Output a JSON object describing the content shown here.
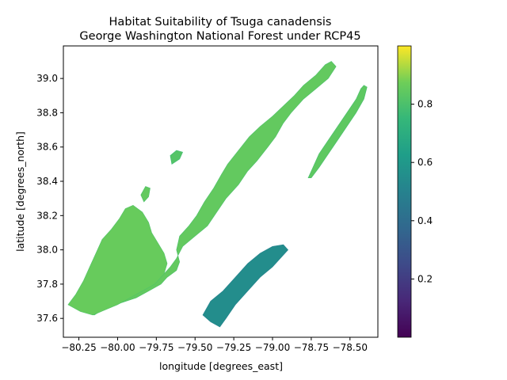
{
  "chart_data": {
    "type": "heatmap",
    "title_line1": "Habitat Suitability of Tsuga canadensis",
    "title_line2": "George Washington National Forest under RCP45",
    "xlabel": "longitude [degrees_east]",
    "ylabel": "latitude [degrees_north]",
    "xlim": [
      -80.35,
      -78.32
    ],
    "ylim": [
      37.49,
      39.19
    ],
    "x_ticks": [
      -80.25,
      -80.0,
      -79.75,
      -79.5,
      -79.25,
      -79.0,
      -78.75,
      -78.5
    ],
    "x_tick_labels": [
      "−80.25",
      "−80.00",
      "−79.75",
      "−79.50",
      "−79.25",
      "−79.00",
      "−78.75",
      "−78.50"
    ],
    "y_ticks": [
      37.6,
      37.8,
      38.0,
      38.2,
      38.4,
      38.6,
      38.8,
      39.0
    ],
    "y_tick_labels": [
      "37.6",
      "37.8",
      "38.0",
      "38.2",
      "38.4",
      "38.6",
      "38.8",
      "39.0"
    ],
    "colormap": "viridis",
    "colorbar": {
      "range": [
        0.0,
        1.0
      ],
      "ticks": [
        0.2,
        0.4,
        0.6,
        0.8
      ],
      "tick_labels": [
        "0.2",
        "0.4",
        "0.6",
        "0.8"
      ]
    },
    "regions": [
      {
        "name": "main-ridge-region",
        "typical_value": 0.85,
        "polygon": [
          [
            -80.3,
            37.68
          ],
          [
            -80.22,
            37.64
          ],
          [
            -80.15,
            37.62
          ],
          [
            -80.08,
            37.66
          ],
          [
            -79.98,
            37.69
          ],
          [
            -79.88,
            37.72
          ],
          [
            -79.8,
            37.76
          ],
          [
            -79.72,
            37.8
          ],
          [
            -79.68,
            37.84
          ],
          [
            -79.62,
            37.88
          ],
          [
            -79.6,
            37.93
          ],
          [
            -79.62,
            38.0
          ],
          [
            -79.6,
            38.08
          ],
          [
            -79.54,
            38.14
          ],
          [
            -79.49,
            38.2
          ],
          [
            -79.44,
            38.28
          ],
          [
            -79.38,
            38.36
          ],
          [
            -79.33,
            38.44
          ],
          [
            -79.29,
            38.5
          ],
          [
            -79.22,
            38.58
          ],
          [
            -79.15,
            38.66
          ],
          [
            -79.08,
            38.72
          ],
          [
            -79.0,
            38.78
          ],
          [
            -78.93,
            38.84
          ],
          [
            -78.86,
            38.9
          ],
          [
            -78.8,
            38.96
          ],
          [
            -78.72,
            39.02
          ],
          [
            -78.66,
            39.08
          ],
          [
            -78.62,
            39.1
          ],
          [
            -78.59,
            39.07
          ],
          [
            -78.64,
            39.0
          ],
          [
            -78.72,
            38.94
          ],
          [
            -78.8,
            38.88
          ],
          [
            -78.88,
            38.8
          ],
          [
            -78.93,
            38.74
          ],
          [
            -78.98,
            38.66
          ],
          [
            -79.03,
            38.6
          ],
          [
            -79.1,
            38.52
          ],
          [
            -79.16,
            38.46
          ],
          [
            -79.22,
            38.38
          ],
          [
            -79.3,
            38.3
          ],
          [
            -79.36,
            38.22
          ],
          [
            -79.42,
            38.14
          ],
          [
            -79.5,
            38.08
          ],
          [
            -79.58,
            38.02
          ],
          [
            -79.62,
            37.95
          ],
          [
            -79.66,
            37.9
          ],
          [
            -79.72,
            37.84
          ],
          [
            -79.8,
            37.8
          ],
          [
            -79.9,
            37.76
          ],
          [
            -80.0,
            37.74
          ],
          [
            -80.1,
            37.72
          ],
          [
            -80.2,
            37.71
          ],
          [
            -80.28,
            37.7
          ]
        ]
      },
      {
        "name": "west-ridge-region",
        "typical_value": 0.86,
        "polygon": [
          [
            -80.32,
            37.68
          ],
          [
            -80.24,
            37.64
          ],
          [
            -80.16,
            37.62
          ],
          [
            -80.08,
            37.65
          ],
          [
            -80.0,
            37.68
          ],
          [
            -79.92,
            37.72
          ],
          [
            -79.84,
            37.76
          ],
          [
            -79.76,
            37.8
          ],
          [
            -79.7,
            37.86
          ],
          [
            -79.68,
            37.92
          ],
          [
            -79.7,
            37.98
          ],
          [
            -79.74,
            38.04
          ],
          [
            -79.78,
            38.1
          ],
          [
            -79.8,
            38.16
          ],
          [
            -79.84,
            38.22
          ],
          [
            -79.9,
            38.26
          ],
          [
            -79.95,
            38.24
          ],
          [
            -79.99,
            38.18
          ],
          [
            -80.04,
            38.12
          ],
          [
            -80.1,
            38.06
          ],
          [
            -80.14,
            37.98
          ],
          [
            -80.18,
            37.9
          ],
          [
            -80.22,
            37.82
          ],
          [
            -80.27,
            37.74
          ]
        ]
      },
      {
        "name": "northeast-ridge-region",
        "typical_value": 0.84,
        "polygon": [
          [
            -78.77,
            38.42
          ],
          [
            -78.74,
            38.48
          ],
          [
            -78.7,
            38.56
          ],
          [
            -78.64,
            38.64
          ],
          [
            -78.58,
            38.72
          ],
          [
            -78.52,
            38.8
          ],
          [
            -78.46,
            38.88
          ],
          [
            -78.43,
            38.94
          ],
          [
            -78.41,
            38.96
          ],
          [
            -78.39,
            38.95
          ],
          [
            -78.41,
            38.88
          ],
          [
            -78.46,
            38.8
          ],
          [
            -78.52,
            38.72
          ],
          [
            -78.58,
            38.64
          ],
          [
            -78.64,
            38.56
          ],
          [
            -78.7,
            38.48
          ],
          [
            -78.75,
            38.42
          ]
        ]
      },
      {
        "name": "south-block-region",
        "typical_value": 0.55,
        "polygon": [
          [
            -79.45,
            37.62
          ],
          [
            -79.4,
            37.58
          ],
          [
            -79.34,
            37.55
          ],
          [
            -79.3,
            37.6
          ],
          [
            -79.24,
            37.68
          ],
          [
            -79.16,
            37.76
          ],
          [
            -79.08,
            37.84
          ],
          [
            -79.0,
            37.9
          ],
          [
            -78.94,
            37.96
          ],
          [
            -78.9,
            38.0
          ],
          [
            -78.93,
            38.03
          ],
          [
            -79.0,
            38.02
          ],
          [
            -79.08,
            37.98
          ],
          [
            -79.16,
            37.92
          ],
          [
            -79.24,
            37.84
          ],
          [
            -79.32,
            37.76
          ],
          [
            -79.4,
            37.7
          ]
        ]
      },
      {
        "name": "small-patch-north",
        "typical_value": 0.82,
        "polygon": [
          [
            -79.65,
            38.5
          ],
          [
            -79.6,
            38.53
          ],
          [
            -79.58,
            38.57
          ],
          [
            -79.62,
            38.58
          ],
          [
            -79.66,
            38.55
          ]
        ]
      },
      {
        "name": "small-patch-middle",
        "typical_value": 0.85,
        "polygon": [
          [
            -79.83,
            38.28
          ],
          [
            -79.8,
            38.31
          ],
          [
            -79.79,
            38.36
          ],
          [
            -79.82,
            38.37
          ],
          [
            -79.85,
            38.32
          ]
        ]
      }
    ]
  }
}
